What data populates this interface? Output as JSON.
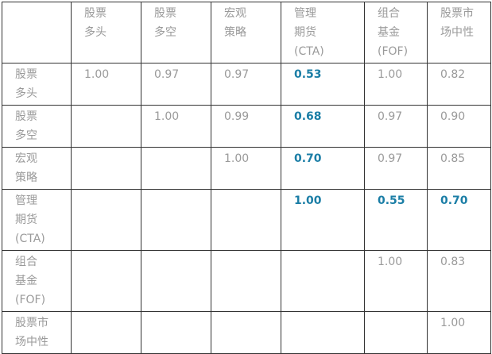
{
  "headers": [
    "",
    "股票\n多头",
    "股票\n多空",
    "宏观\n策略",
    "管理\n期货\n(CTA)",
    "组合\n基金\n(FOF)",
    "股票市\n场中性"
  ],
  "rows": [
    {
      "label": "股票\n多头",
      "cells": [
        "1.00",
        "0.97",
        "0.97",
        "0.53",
        "1.00",
        "0.82"
      ],
      "highlight": [
        false,
        false,
        false,
        true,
        false,
        false
      ]
    },
    {
      "label": "股票\n多空",
      "cells": [
        "",
        "1.00",
        "0.99",
        "0.68",
        "0.97",
        "0.90"
      ],
      "highlight": [
        false,
        false,
        false,
        true,
        false,
        false
      ]
    },
    {
      "label": "宏观\n策略",
      "cells": [
        "",
        "",
        "1.00",
        "0.70",
        "0.97",
        "0.85"
      ],
      "highlight": [
        false,
        false,
        false,
        true,
        false,
        false
      ]
    },
    {
      "label": "管理\n期货\n(CTA)",
      "cells": [
        "",
        "",
        "",
        "1.00",
        "0.55",
        "0.70"
      ],
      "highlight": [
        false,
        false,
        false,
        true,
        true,
        true
      ]
    },
    {
      "label": "组合\n基金\n(FOF)",
      "cells": [
        "",
        "",
        "",
        "",
        "1.00",
        "0.83"
      ],
      "highlight": [
        false,
        false,
        false,
        false,
        false,
        false
      ]
    },
    {
      "label": "股票市\n场中性",
      "cells": [
        "",
        "",
        "",
        "",
        "",
        "1.00"
      ],
      "highlight": [
        false,
        false,
        false,
        false,
        false,
        false
      ]
    }
  ],
  "colors": {
    "text": "#9a9a9a",
    "highlight": "#1b7ea6",
    "border": "#333333"
  }
}
